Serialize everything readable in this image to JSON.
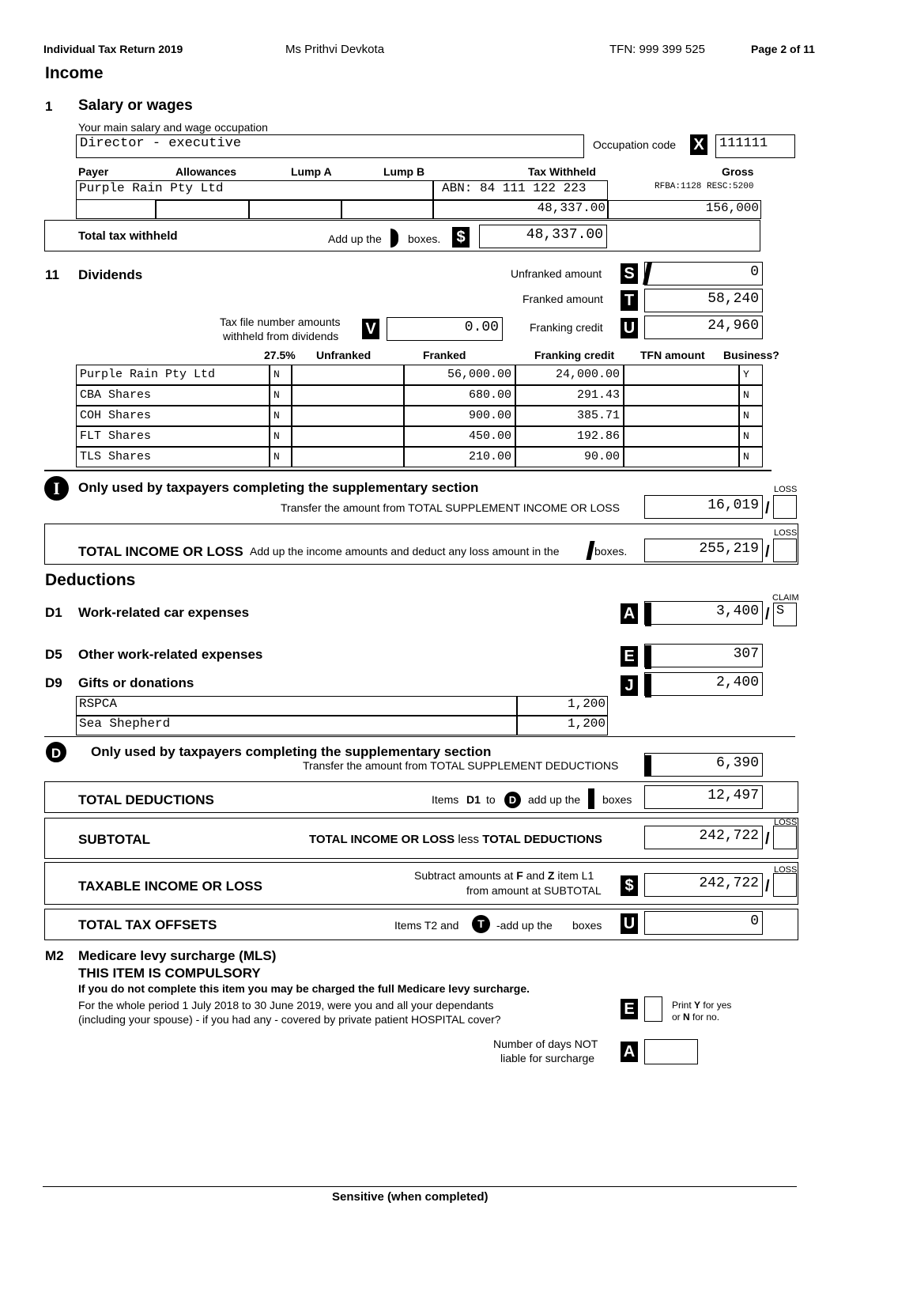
{
  "header": {
    "title": "Individual Tax Return 2019",
    "name": "Ms Prithvi Devkota",
    "tfn": "TFN:  999 399 525",
    "page": "Page 2 of 11"
  },
  "income_heading": "Income",
  "salary": {
    "num": "1",
    "title": "Salary or wages",
    "occ_label": "Your main salary and wage occupation",
    "occupation": "Director - executive",
    "occ_code_label": "Occupation code",
    "occ_code_letter": "X",
    "occ_code": "111111",
    "columns": [
      "Payer",
      "Allowances",
      "Lump A",
      "Lump B",
      "Tax Withheld",
      "Gross"
    ],
    "payer": "Purple Rain Pty Ltd",
    "abn": "ABN: 84 111 122 223",
    "rfba": "RFBA:1128 RESC:5200",
    "tax_withheld": "48,337.00",
    "gross": "156,000",
    "total_label": "Total tax withheld",
    "add_up": "Add up the",
    "boxes": "boxes.",
    "letter": "$",
    "total": "48,337.00"
  },
  "dividends": {
    "num": "11",
    "title": "Dividends",
    "unfranked_label": "Unfranked amount",
    "unfranked_letter": "S",
    "unfranked": "0",
    "franked_label": "Franked amount",
    "franked_letter": "T",
    "franked": "58,240",
    "credit_label": "Franking credit",
    "credit_letter": "U",
    "credit": "24,960",
    "tfn_label_1": "Tax file number amounts",
    "tfn_label_2": "withheld  from  dividends",
    "tfn_letter": "V",
    "tfn_amount": "0.00",
    "columns": [
      "27.5%",
      "Unfranked",
      "Franked",
      "Franking credit",
      "TFN amount",
      "Business?"
    ],
    "rows": [
      {
        "name": "Purple  Rain  Pty  Ltd",
        "rate": "N",
        "unfranked": "",
        "franked": "56,000.00",
        "credit": "24,000.00",
        "tfn": "",
        "business": "Y"
      },
      {
        "name": "CBA  Shares",
        "rate": "N",
        "unfranked": "",
        "franked": "680.00",
        "credit": "291.43",
        "tfn": "",
        "business": "N"
      },
      {
        "name": "COH  Shares",
        "rate": "N",
        "unfranked": "",
        "franked": "900.00",
        "credit": "385.71",
        "tfn": "",
        "business": "N"
      },
      {
        "name": "FLT  Shares",
        "rate": "N",
        "unfranked": "",
        "franked": "450.00",
        "credit": "192.86",
        "tfn": "",
        "business": "N"
      },
      {
        "name": "TLS  Shares",
        "rate": "N",
        "unfranked": "",
        "franked": "210.00",
        "credit": "90.00",
        "tfn": "",
        "business": "N"
      }
    ]
  },
  "supp_income": {
    "icon": "I",
    "title": "Only used by taxpayers completing the supplementary section",
    "transfer": "Transfer the amount from TOTAL SUPPLEMENT INCOME OR LOSS",
    "value": "16,019",
    "loss": "LOSS"
  },
  "total_income": {
    "label": "TOTAL INCOME OR LOSS",
    "desc": "Add up the income amounts and deduct any loss amount in the",
    "boxes": "boxes.",
    "value": "255,219",
    "loss": "LOSS"
  },
  "deductions_heading": "Deductions",
  "d1": {
    "num": "D1",
    "title": "Work-related car expenses",
    "letter": "A",
    "value": "3,400",
    "claim_label": "CLAIM",
    "claim": "S"
  },
  "d5": {
    "num": "D5",
    "title": "Other work-related expenses",
    "letter": "E",
    "value": "307"
  },
  "d9": {
    "num": "D9",
    "title": "Gifts or donations",
    "letter": "J",
    "value": "2,400",
    "items": [
      {
        "name": "RSPCA",
        "amount": "1,200"
      },
      {
        "name": "Sea Shepherd",
        "amount": "1,200"
      }
    ]
  },
  "supp_ded": {
    "icon": "D",
    "title": "Only used by taxpayers completing the supplementary section",
    "transfer": "Transfer the amount from TOTAL SUPPLEMENT DEDUCTIONS",
    "value": "6,390"
  },
  "total_ded": {
    "label": "TOTAL DEDUCTIONS",
    "items": "Items",
    "d1": "D1",
    "to": "to",
    "icon": "D",
    "add_up": "add up the",
    "boxes": "boxes",
    "value": "12,497"
  },
  "subtotal": {
    "label": "SUBTOTAL",
    "desc_1": "TOTAL INCOME OR LOSS",
    "less": "less",
    "desc_2": "TOTAL DEDUCTIONS",
    "value": "242,722",
    "loss": "LOSS"
  },
  "taxable": {
    "label": "TAXABLE INCOME OR LOSS",
    "line1_a": "Subtract amounts at",
    "f": "F",
    "and": "and",
    "z": "Z",
    "line1_b": "item L1",
    "line2": "from amount at SUBTOTAL",
    "letter": "$",
    "value": "242,722",
    "loss": "LOSS"
  },
  "offsets": {
    "label": "TOTAL TAX OFFSETS",
    "items": "Items T2 and",
    "icon": "T",
    "add_up": "-add up the",
    "boxes": "boxes",
    "letter": "U",
    "value": "0"
  },
  "m2": {
    "num": "M2",
    "title": "Medicare levy surcharge (MLS)",
    "compulsory": "THIS ITEM IS COMPULSORY",
    "warning": "If you do not complete this item you may be charged the full Medicare levy surcharge.",
    "q1": "For the whole period 1 July 2018 to 30 June 2019, were you and all your dependants",
    "q2": "(including your spouse) - if you had any - covered by private patient HOSPITAL cover?",
    "e_letter": "E",
    "e_value": "",
    "print_1a": "Print",
    "print_y": "Y",
    "print_1b": "for  yes",
    "print_2a": "or",
    "print_n": "N",
    "print_2b": "for  no.",
    "days_1": "Number of days NOT",
    "days_2": "liable for surcharge",
    "a_letter": "A",
    "days_value": ""
  },
  "footer": "Sensitive (when completed)"
}
